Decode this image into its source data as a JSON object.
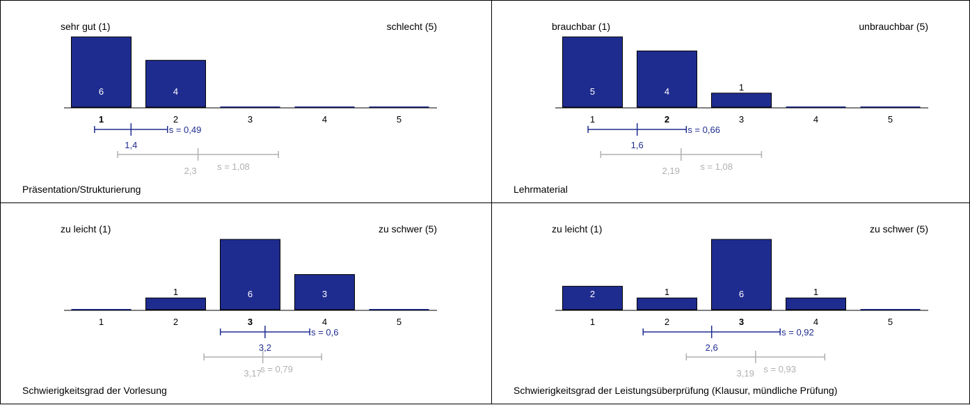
{
  "chart_data": [
    {
      "type": "bar",
      "title": "Präsentation/Strukturierung",
      "left_label": "sehr gut (1)",
      "right_label": "schlecht (5)",
      "categories": [
        "1",
        "2",
        "3",
        "4",
        "5"
      ],
      "values": [
        6,
        4,
        0,
        0,
        0
      ],
      "bold_category": "1",
      "ylim": [
        0,
        6
      ],
      "stats": {
        "mean": 1.4,
        "mean_label": "1,4",
        "sd": 0.49,
        "sd_label": "s = 0,49",
        "color": "#1f2c8f"
      },
      "reference": {
        "mean": 2.3,
        "mean_label": "2,3",
        "sd": 1.08,
        "sd_label": "s = 1,08",
        "color": "#b0b0b0"
      }
    },
    {
      "type": "bar",
      "title": "Lehrmaterial",
      "left_label": "brauchbar (1)",
      "right_label": "unbrauchbar (5)",
      "categories": [
        "1",
        "2",
        "3",
        "4",
        "5"
      ],
      "values": [
        5,
        4,
        1,
        0,
        0
      ],
      "bold_category": "2",
      "ylim": [
        0,
        5
      ],
      "stats": {
        "mean": 1.6,
        "mean_label": "1,6",
        "sd": 0.66,
        "sd_label": "s = 0,66",
        "color": "#1f2c8f"
      },
      "reference": {
        "mean": 2.19,
        "mean_label": "2,19",
        "sd": 1.08,
        "sd_label": "s = 1,08",
        "color": "#b0b0b0"
      }
    },
    {
      "type": "bar",
      "title": "Schwierigkeitsgrad der Vorlesung",
      "left_label": "zu leicht (1)",
      "right_label": "zu schwer (5)",
      "categories": [
        "1",
        "2",
        "3",
        "4",
        "5"
      ],
      "values": [
        0,
        1,
        6,
        3,
        0
      ],
      "bold_category": "3",
      "ylim": [
        0,
        6
      ],
      "stats": {
        "mean": 3.2,
        "mean_label": "3,2",
        "sd": 0.6,
        "sd_label": "s = 0,6",
        "color": "#1f2c8f"
      },
      "reference": {
        "mean": 3.17,
        "mean_label": "3,17",
        "sd": 0.79,
        "sd_label": "s = 0,79",
        "color": "#b0b0b0"
      }
    },
    {
      "type": "bar",
      "title": "Schwierigkeitsgrad der Leistungsüberprüfung (Klausur, mündliche Prüfung)",
      "left_label": "zu leicht (1)",
      "right_label": "zu schwer (5)",
      "categories": [
        "1",
        "2",
        "3",
        "4",
        "5"
      ],
      "values": [
        2,
        1,
        6,
        1,
        0
      ],
      "bold_category": "3",
      "ylim": [
        0,
        6
      ],
      "stats": {
        "mean": 2.6,
        "mean_label": "2,6",
        "sd": 0.92,
        "sd_label": "s = 0,92",
        "color": "#1f2c8f"
      },
      "reference": {
        "mean": 3.19,
        "mean_label": "3,19",
        "sd": 0.93,
        "sd_label": "s = 0,93",
        "color": "#b0b0b0"
      }
    }
  ],
  "colors": {
    "bar_fill": "#1f2c8f",
    "bar_stroke": "#000000",
    "stats": "#1f2c8f",
    "reference": "#b0b0b0"
  }
}
